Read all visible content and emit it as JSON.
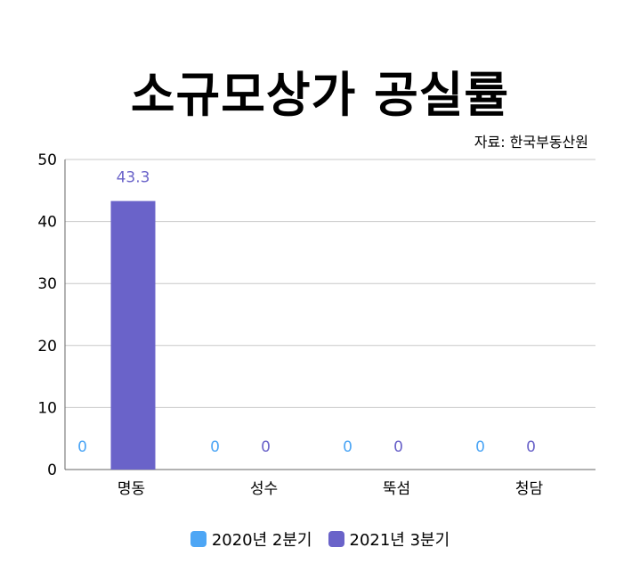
{
  "chart_data": {
    "type": "bar",
    "title": "소규모상가 공실률",
    "source": "자료: 한국부동산원",
    "categories": [
      "명동",
      "성수",
      "뚝섬",
      "청담"
    ],
    "series": [
      {
        "name": "2020년 2분기",
        "values": [
          0,
          0,
          0,
          0
        ],
        "color": "#4da6f5"
      },
      {
        "name": "2021년 3분기",
        "values": [
          43.3,
          0,
          0,
          0
        ],
        "color": "#6a63c9"
      }
    ],
    "y_ticks": [
      "0",
      "10",
      "20",
      "30",
      "40",
      "50"
    ],
    "ylim": [
      0,
      50
    ],
    "grid": true,
    "legend_position": "bottom"
  }
}
